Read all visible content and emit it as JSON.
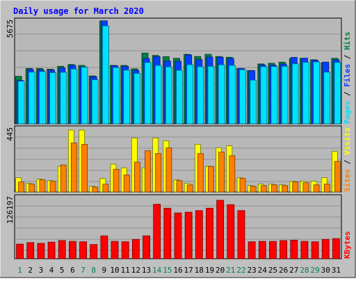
{
  "chart_data": [
    {
      "type": "bar",
      "title": "Daily usage for March 2020",
      "panel": "hits-files-pages",
      "categories": [
        "1",
        "2",
        "3",
        "4",
        "5",
        "6",
        "7",
        "8",
        "9",
        "10",
        "11",
        "12",
        "13",
        "14",
        "15",
        "16",
        "17",
        "18",
        "19",
        "20",
        "21",
        "22",
        "23",
        "24",
        "25",
        "26",
        "27",
        "28",
        "29",
        "30",
        "31"
      ],
      "ylabel_parts": [
        "Pages",
        "Files",
        "Hits"
      ],
      "ytick_label": "5675",
      "ymax": 5675,
      "series": [
        {
          "name": "Hits",
          "color": "#008040",
          "values": [
            2620,
            3050,
            3050,
            3010,
            3170,
            3270,
            3220,
            2640,
            5675,
            3220,
            3220,
            3030,
            3900,
            3770,
            3700,
            3610,
            3830,
            3710,
            3830,
            3710,
            3670,
            3050,
            2940,
            3300,
            3340,
            3400,
            3600,
            3610,
            3530,
            3360,
            3610
          ]
        },
        {
          "name": "Files",
          "color": "#0040ff",
          "values": [
            2400,
            3000,
            2970,
            2960,
            3080,
            3220,
            3140,
            2600,
            5675,
            3200,
            3170,
            2950,
            3600,
            3710,
            3460,
            3450,
            3800,
            3540,
            3680,
            3670,
            3600,
            3050,
            2930,
            3250,
            3240,
            3300,
            3660,
            3620,
            3500,
            3400,
            3530
          ]
        },
        {
          "name": "Pages",
          "color": "#00e0ff",
          "values": [
            2350,
            2850,
            2880,
            2820,
            2840,
            3020,
            3120,
            2430,
            5400,
            3100,
            2960,
            2780,
            3380,
            3220,
            3140,
            2950,
            3260,
            3150,
            3170,
            3250,
            3220,
            2980,
            2410,
            3150,
            3160,
            3170,
            3310,
            3390,
            3410,
            2850,
            3380
          ]
        }
      ]
    },
    {
      "type": "bar",
      "panel": "visits-sites",
      "ylabel_parts": [
        "Sites",
        "Visits"
      ],
      "ytick_label": "445",
      "ymax": 445,
      "series": [
        {
          "name": "Visits",
          "color": "#ffff00",
          "values": [
            100,
            60,
            90,
            80,
            180,
            435,
            435,
            40,
            95,
            195,
            170,
            380,
            170,
            380,
            360,
            85,
            60,
            335,
            180,
            310,
            325,
            100,
            45,
            55,
            55,
            50,
            75,
            75,
            75,
            100,
            285
          ]
        },
        {
          "name": "Sites",
          "color": "#ff8000",
          "values": [
            70,
            55,
            85,
            75,
            190,
            345,
            335,
            35,
            55,
            160,
            120,
            210,
            290,
            270,
            310,
            80,
            50,
            270,
            180,
            280,
            255,
            95,
            40,
            45,
            50,
            45,
            70,
            65,
            50,
            55,
            215
          ]
        }
      ]
    },
    {
      "type": "bar",
      "panel": "kbytes",
      "ylabel_parts": [
        "KBytes"
      ],
      "ytick_label": "126197",
      "ymax": 155000,
      "series": [
        {
          "name": "KBytes",
          "color": "#ff0000",
          "values": [
            37000,
            41000,
            39000,
            42000,
            46000,
            44000,
            43000,
            36000,
            58000,
            44000,
            43000,
            49000,
            58000,
            138000,
            128000,
            116000,
            118000,
            122000,
            128000,
            148000,
            137000,
            122000,
            43000,
            44000,
            44000,
            46000,
            47000,
            44000,
            43000,
            49000,
            51000
          ]
        }
      ]
    }
  ],
  "colors": {
    "background": "#c0c0c0",
    "plot_background": "#b8b8b8",
    "title_color": "#0000ff",
    "day_weekday": "#000000",
    "day_weekend": "#00805c"
  },
  "x_axis": {
    "weekend_days": [
      1,
      7,
      8,
      14,
      15,
      21,
      22,
      28,
      29
    ]
  }
}
